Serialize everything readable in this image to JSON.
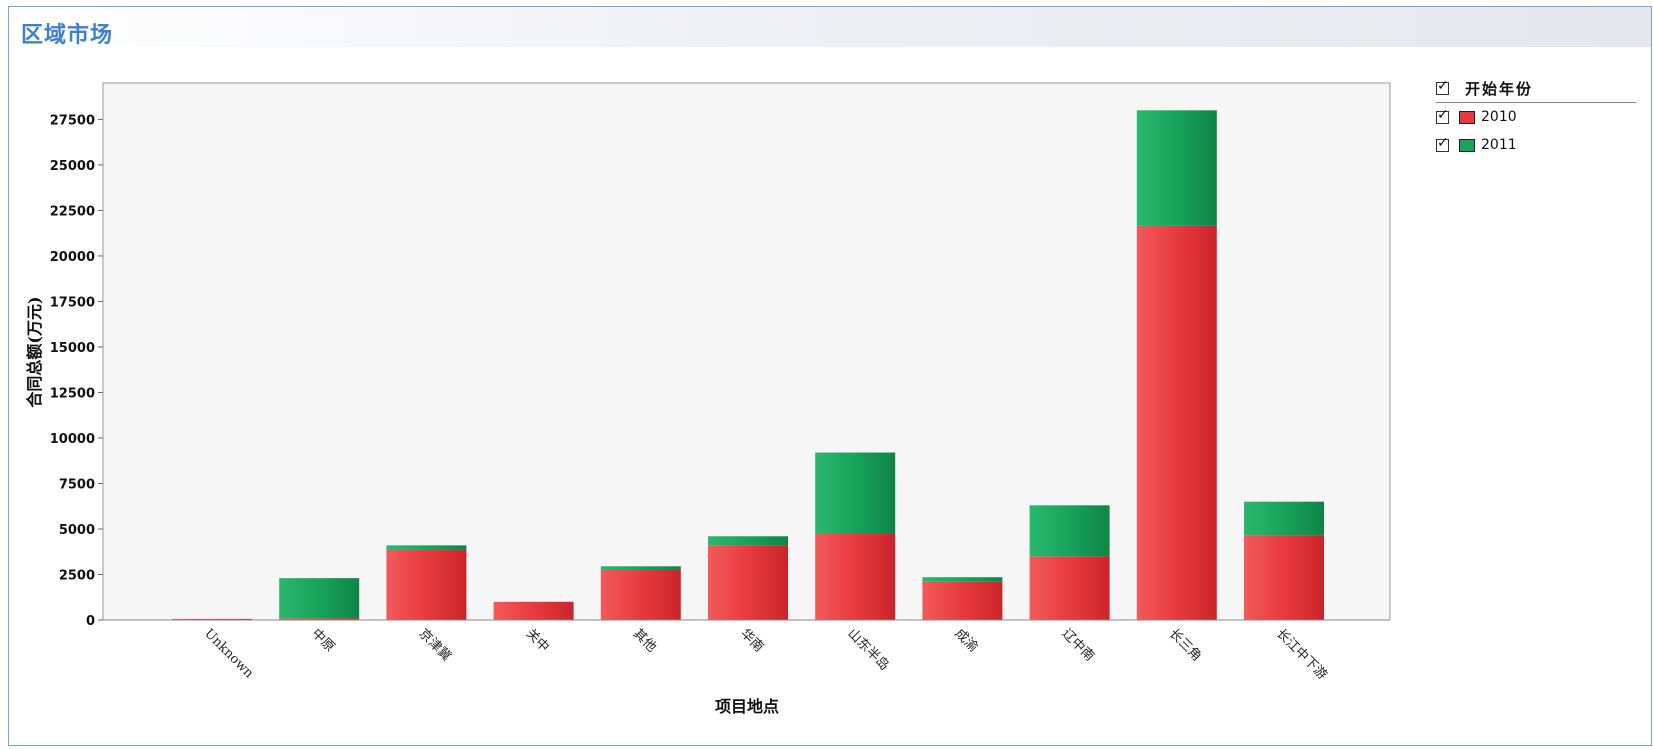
{
  "page": {
    "title": "区域市场"
  },
  "legend": {
    "title": "开始年份",
    "items": [
      {
        "label": "2010",
        "color": "#e8383d",
        "checked": true
      },
      {
        "label": "2011",
        "color": "#16a35a",
        "checked": true
      }
    ]
  },
  "chart_data": {
    "type": "bar",
    "stacked": true,
    "xlabel": "项目地点",
    "ylabel": "合同总额(万元)",
    "ylim": [
      0,
      29500
    ],
    "yticks": [
      0,
      2500,
      5000,
      7500,
      10000,
      12500,
      15000,
      17500,
      20000,
      22500,
      25000,
      27500
    ],
    "categories": [
      "Unknown",
      "中原",
      "京津冀",
      "关中",
      "其他",
      "华南",
      "山东半岛",
      "成渝",
      "辽中南",
      "长三角",
      "长江中下游"
    ],
    "series": [
      {
        "name": "2010",
        "color": "#e8383d",
        "values": [
          60,
          100,
          3850,
          1000,
          2750,
          4100,
          4750,
          2100,
          3500,
          21650,
          4650
        ]
      },
      {
        "name": "2011",
        "color": "#16a35a",
        "values": [
          0,
          2200,
          250,
          0,
          200,
          500,
          4450,
          250,
          2800,
          6350,
          1850
        ]
      }
    ],
    "grid": false,
    "legend_position": "right"
  }
}
